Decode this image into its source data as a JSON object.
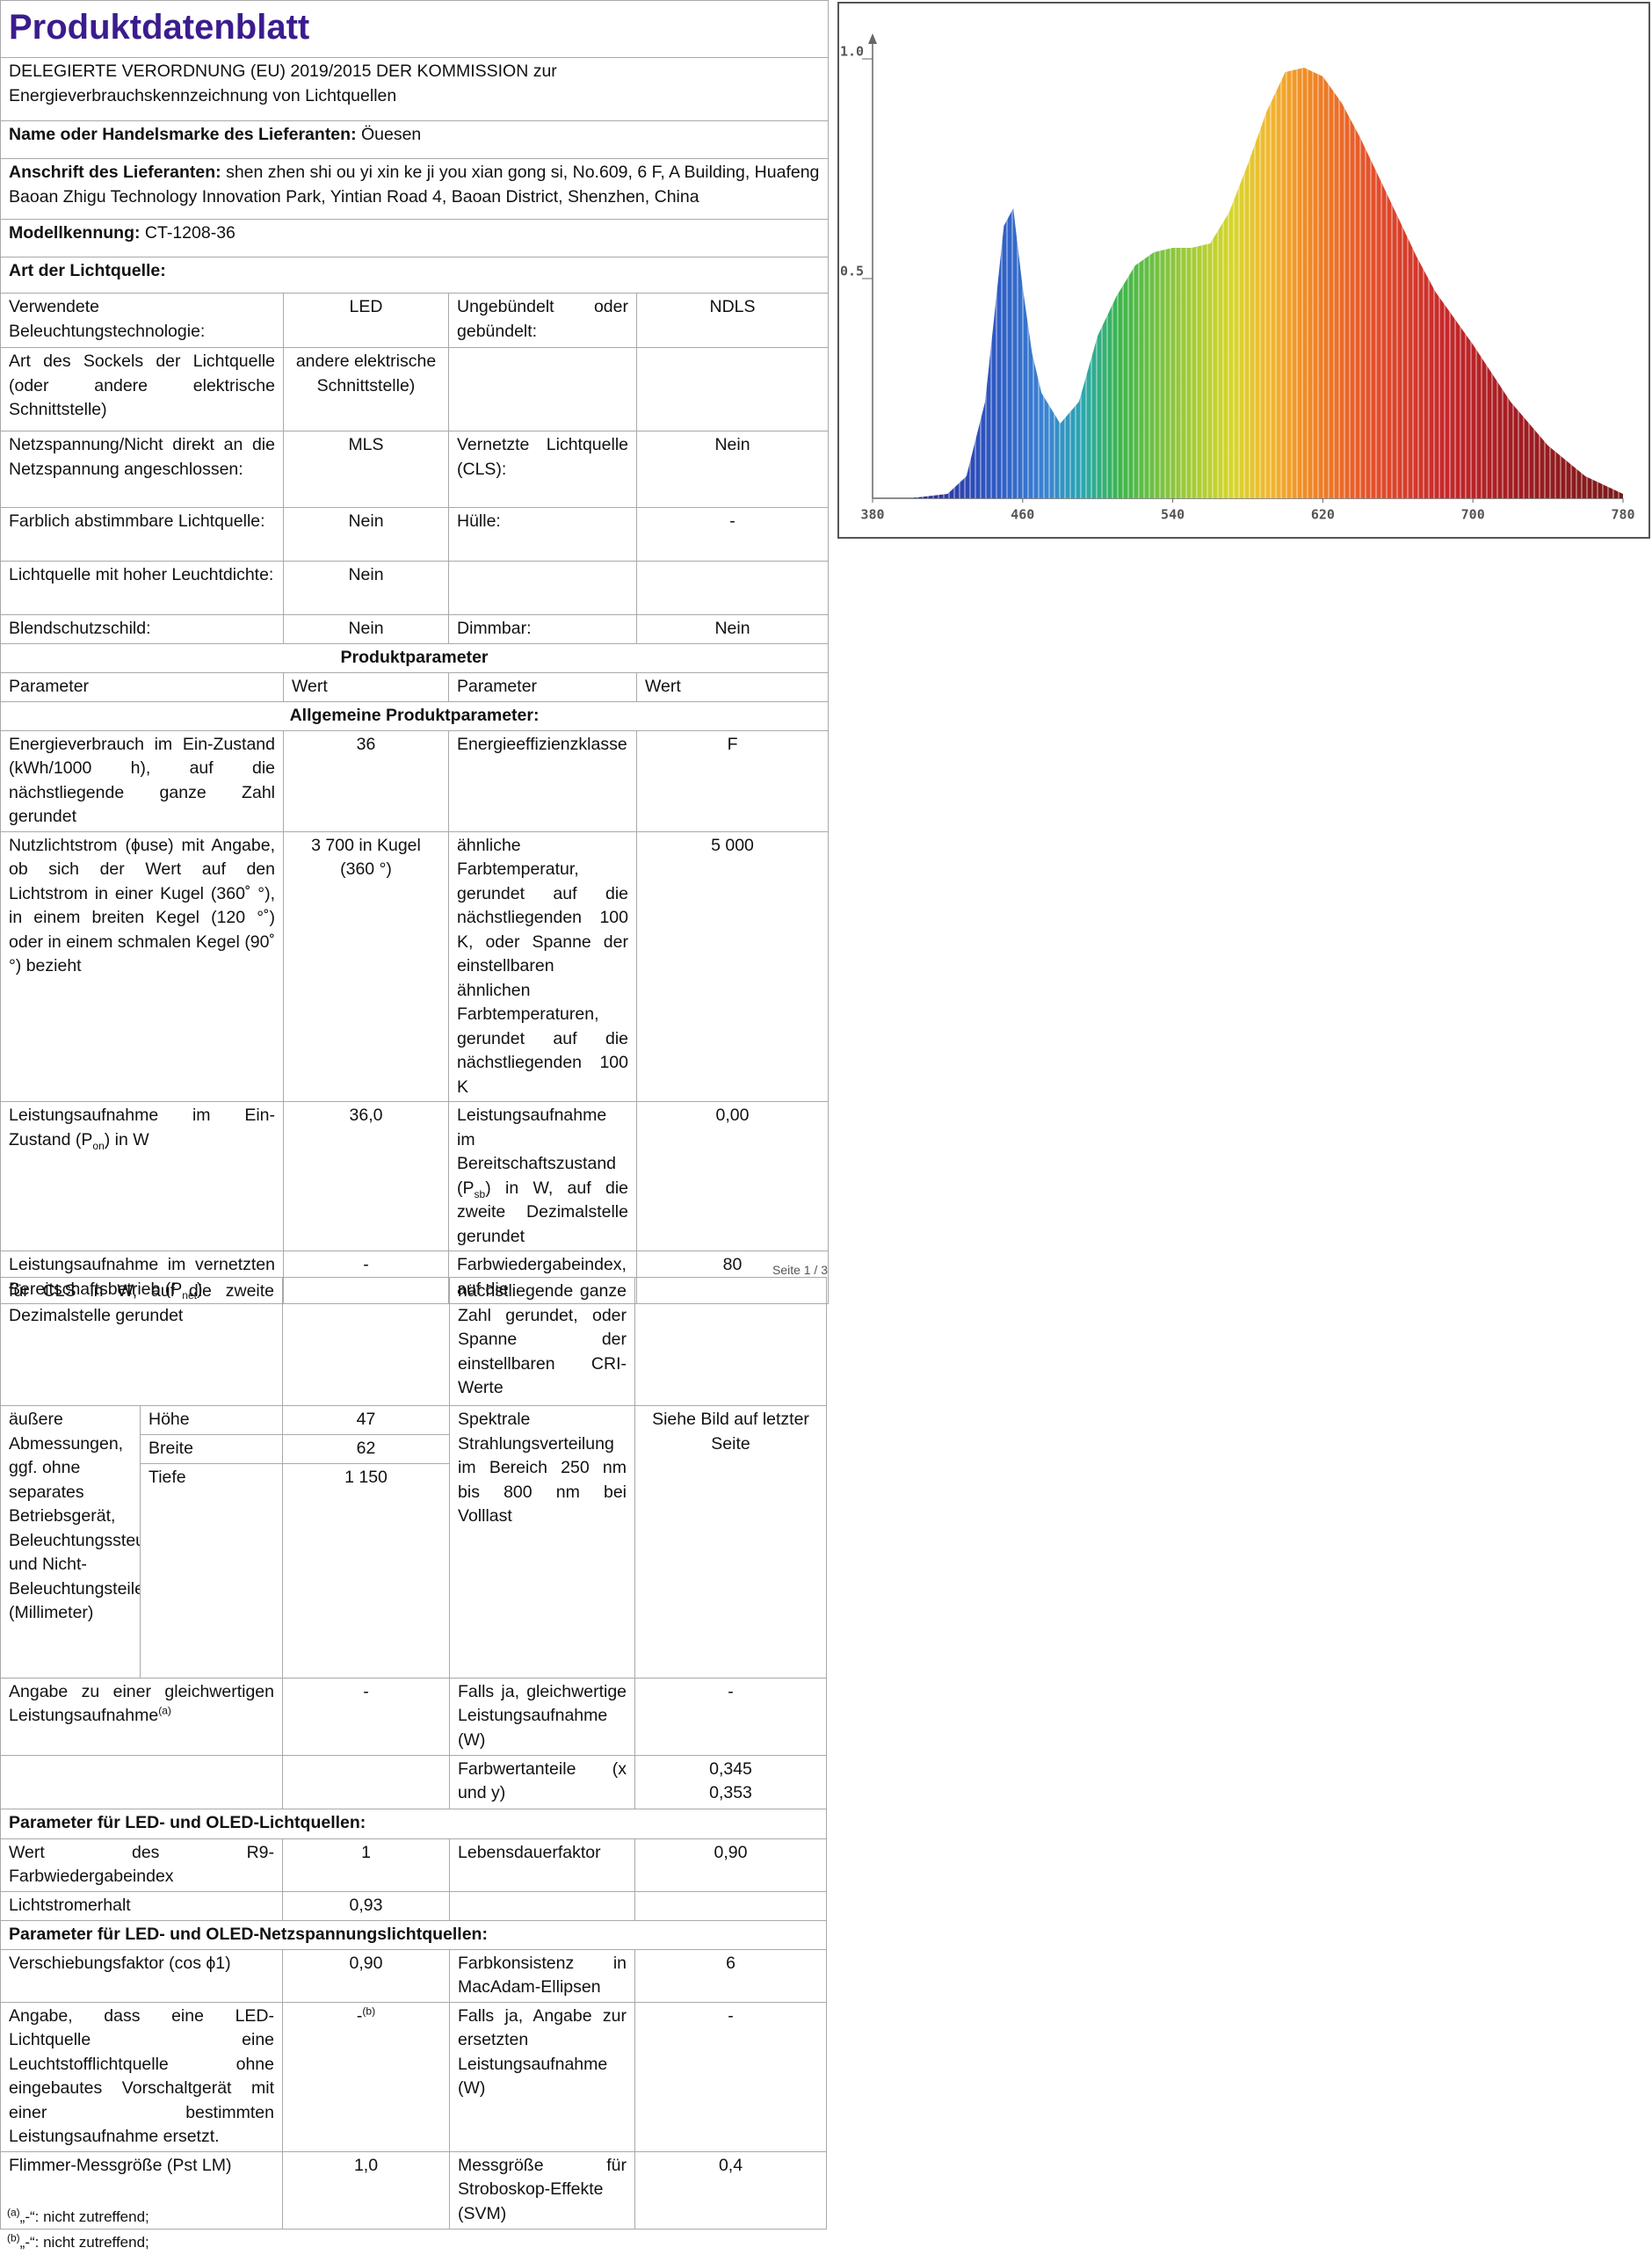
{
  "page1": {
    "title": "Produktdatenblatt",
    "subtitle": "DELEGIERTE VERORDNUNG (EU) 2019/2015 DER KOMMISSION zur Energieverbrauchskennzeichnung von Lichtquellen",
    "supplier": {
      "label": "Name oder Handelsmarke des Lieferanten:",
      "value": "Öuesen"
    },
    "address": {
      "label": "Anschrift des Lieferanten:",
      "value": "shen zhen shi ou yi xin ke ji you xian gong si, No.609, 6 F, A Building, Huafeng Baoan Zhigu Technology Innovation Park, Yintian Road 4, Baoan District, Shenzhen, China"
    },
    "model": {
      "label": "Modellkennung:",
      "value": "CT-1208-36"
    },
    "light_source_heading": "Art der Lichtquelle:",
    "rows": [
      [
        "Verwendete Beleuchtungstechnologie:",
        "LED",
        "Ungebündelt oder gebündelt:",
        "NDLS"
      ],
      [
        "Art des Sockels der Lichtquelle (oder andere elektrische Schnittstelle)",
        "andere elektrische Schnittstelle)",
        null,
        null
      ],
      [
        "Netzspannung/Nicht direkt an die Netzspannung angeschlossen:",
        "MLS",
        "Vernetzte Lichtquelle (CLS):",
        "Nein"
      ],
      [
        "Farblich abstimmbare Lichtquelle:",
        "Nein",
        "Hülle:",
        "-"
      ],
      [
        "Lichtquelle mit hoher Leuchtdichte:",
        "Nein",
        null,
        null
      ],
      [
        "Blendschutzschild:",
        "Nein",
        "Dimmbar:",
        "Nein"
      ],
      "Produktparameter",
      [
        "Parameter",
        "Wert",
        "Parameter",
        "Wert"
      ],
      "Allgemeine Produktparameter:",
      [
        "Energieverbrauch im Ein-Zustand (kWh/1000 h), auf die nächstliegende ganze Zahl gerundet",
        "36",
        "Energieeffizienzklasse",
        "F"
      ],
      [
        "Nutzlichtstrom (ɸuse) mit Angabe, ob sich der Wert auf den Lichtstrom in einer Kugel (360˚ °), in einem breiten Kegel (120 °˚) oder in einem schmalen Kegel (90˚ °) bezieht",
        "3 700 in Kugel (360 °)",
        "ähnliche Farbtemperatur, gerundet auf die nächstliegenden 100 K, oder Spanne der einstellbaren ähnlichen Farbtemperaturen, gerundet auf die nächstliegenden 100 K",
        "5 000"
      ],
      [
        [
          "Leistungsaufnahme im Ein-Zustand (P",
          "on",
          ") in W"
        ],
        "36,0",
        [
          "Leistungsaufnahme im Bereitschaftszustand (P",
          "sb",
          ") in W, auf die zweite Dezimalstelle gerundet"
        ],
        "0,00"
      ],
      [
        [
          "Leistungsaufnahme im vernetzten Bereitschaftsbetrieb (P",
          "net",
          ")"
        ],
        "-",
        "Farbwiedergabeindex, auf die",
        "80"
      ]
    ]
  },
  "page_number": "Seite 1 / 3",
  "page2": {
    "rows_before": [
      [
        "für CLS in W, auf die zweite Dezimalstelle gerundet",
        null,
        "nächstliegende ganze Zahl gerundet, oder Spanne der einstellbaren CRI-Werte",
        null
      ]
    ],
    "dimensions": {
      "label": "äußere Abmessungen, ggf. ohne separates Betriebsgerät, Beleuchtungssteuerungsteile und Nicht-Beleuchtungsteile (Millimeter)",
      "items": [
        [
          "Höhe",
          "47"
        ],
        [
          "Breite",
          "62"
        ],
        [
          "Tiefe",
          "1 150"
        ]
      ],
      "spectral_label": "Spektrale Strahlungsverteilung im Bereich 250 nm bis 800 nm bei Volllast",
      "spectral_value": "Siehe Bild auf letzter Seite"
    },
    "rows": [
      [
        [
          "Angabe zu einer gleichwertigen Leistungsaufnahme",
          "(a)"
        ],
        "-",
        "Falls ja, gleichwertige Leistungsaufnahme (W)",
        "-"
      ],
      [
        null,
        null,
        "Farbwertanteile (x und y)",
        "0,345\n0,353"
      ],
      "Parameter für LED- und OLED-Lichtquellen:",
      [
        "Wert des R9-Farbwiedergabeindex",
        "1",
        "Lebensdauerfaktor",
        "0,90"
      ],
      [
        "Lichtstromerhalt",
        "0,93",
        null,
        null
      ],
      "Parameter für LED- und OLED-Netzspannungslichtquellen:",
      [
        "Verschiebungsfaktor (cos ϕ1)",
        "0,90",
        "Farbkonsistenz in MacAdam-Ellipsen",
        "6"
      ],
      [
        "Angabe, dass eine LED-Lichtquelle eine Leuchtstofflichtquelle ohne eingebautes Vorschaltgerät mit einer bestimmten Leistungsaufnahme ersetzt.",
        [
          "-",
          "(b)"
        ],
        "Falls ja, Angabe zur ersetzten Leistungsaufnahme (W)",
        "-"
      ],
      [
        "Flimmer-Messgröße (Pst LM)",
        "1,0",
        "Messgröße für Stroboskop-Effekte (SVM)",
        "0,4"
      ]
    ]
  },
  "footnotes": [
    [
      "(a)",
      "„-“: nicht zutreffend;"
    ],
    [
      "(b)",
      "„-“: nicht zutreffend;"
    ]
  ],
  "spectrum": {
    "type": "area",
    "x": [
      380,
      400,
      420,
      430,
      440,
      445,
      450,
      455,
      460,
      465,
      470,
      480,
      490,
      500,
      510,
      520,
      530,
      540,
      550,
      560,
      570,
      580,
      590,
      600,
      610,
      620,
      630,
      640,
      650,
      660,
      670,
      680,
      690,
      700,
      720,
      740,
      760,
      780
    ],
    "values": [
      0,
      0,
      0.01,
      0.05,
      0.22,
      0.42,
      0.62,
      0.66,
      0.48,
      0.33,
      0.24,
      0.17,
      0.22,
      0.37,
      0.46,
      0.53,
      0.56,
      0.57,
      0.57,
      0.58,
      0.65,
      0.76,
      0.88,
      0.97,
      0.98,
      0.96,
      0.9,
      0.82,
      0.73,
      0.64,
      0.55,
      0.47,
      0.41,
      0.35,
      0.22,
      0.12,
      0.05,
      0.01
    ],
    "xlim": [
      380,
      780
    ],
    "ylim": [
      0,
      1.05
    ],
    "xticks": [
      380,
      460,
      540,
      620,
      700,
      780
    ],
    "yticks": [
      0.5,
      {
        "value": 1,
        "label": "1.0"
      }
    ]
  }
}
